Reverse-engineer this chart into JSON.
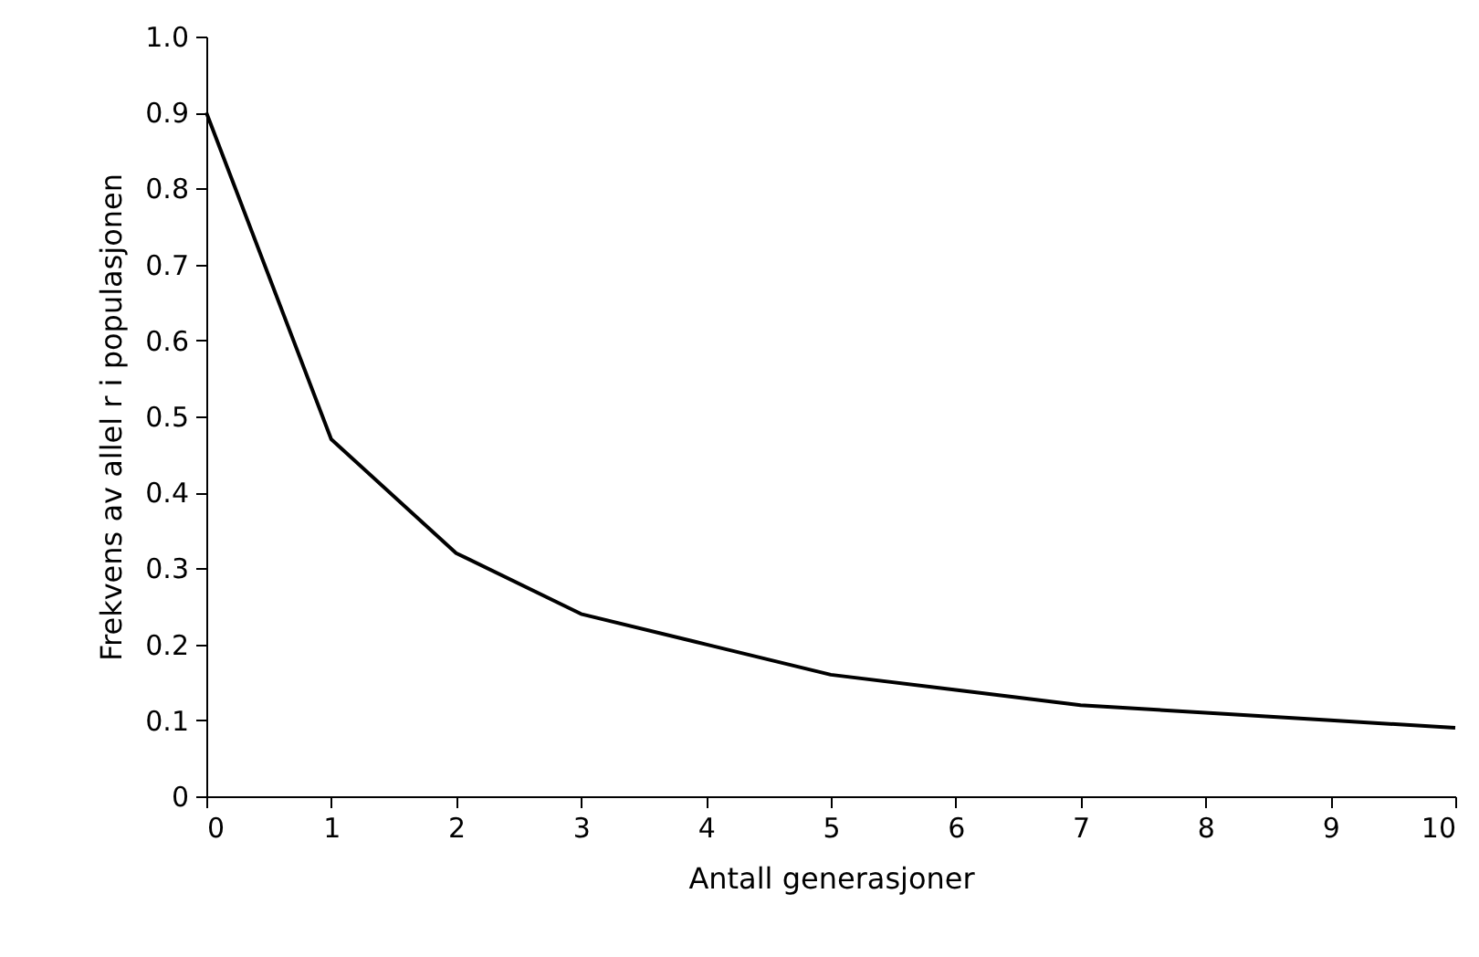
{
  "chart_data": {
    "type": "line",
    "xlabel": "Antall generasjoner",
    "ylabel": "Frekvens av allel r i populasjonen",
    "x": [
      0,
      1,
      2,
      3,
      4,
      5,
      6,
      7,
      8,
      9,
      10
    ],
    "series": [
      {
        "color": "#000000",
        "values": [
          0.9,
          0.47,
          0.32,
          0.24,
          0.2,
          0.16,
          0.14,
          0.12,
          0.11,
          0.1,
          0.09
        ]
      }
    ],
    "xlim": [
      0,
      10
    ],
    "xticks": [
      0,
      1,
      2,
      3,
      4,
      5,
      6,
      7,
      8,
      9,
      10
    ],
    "ylim": [
      0,
      1
    ],
    "yticks": [
      0,
      {
        "value": 0.1,
        "label": "0.1"
      },
      {
        "value": 0.2,
        "label": "0.2"
      },
      {
        "value": 0.3,
        "label": "0.3"
      },
      {
        "value": 0.4,
        "label": "0.4"
      },
      {
        "value": 0.5,
        "label": "0.5"
      },
      {
        "value": 0.6,
        "label": "0.6"
      },
      {
        "value": 0.7,
        "label": "0.7"
      },
      {
        "value": 0.8,
        "label": "0.8"
      },
      {
        "value": 0.9,
        "label": "0.9"
      },
      {
        "value": 1,
        "label": "1.0"
      }
    ],
    "grid": false,
    "legend": false,
    "marker": "none",
    "line_style": "solid"
  }
}
